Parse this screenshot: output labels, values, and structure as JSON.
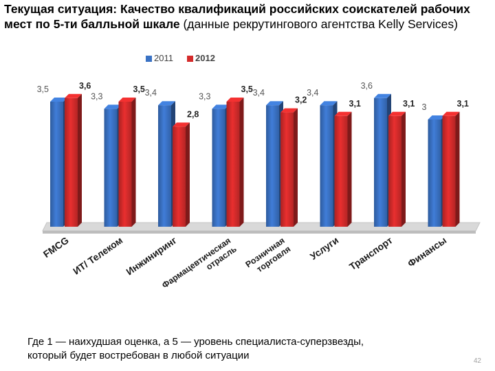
{
  "title": {
    "bold": "Текущая ситуация: Качество квалификаций российских  соискателей рабочих мест по 5-ти балльной шкале",
    "normal": " (данные рекрутингового агентства Kelly Services)"
  },
  "note": {
    "line1": "Где 1 — наихудшая оценка, а 5 — уровень специалиста-суперзвезды,",
    "line2": "который будет востребован в любой ситуации"
  },
  "page_number": "42",
  "colors": {
    "s2011": "#3a72c4",
    "s2012": "#d42b2b",
    "floor": "#d9d9d9"
  },
  "chart_data": {
    "type": "bar",
    "categories": [
      [
        "FMCG"
      ],
      [
        "ИТ/ Телеком"
      ],
      [
        "Инжиниринг"
      ],
      [
        "Фармацевтическая",
        "отрасль"
      ],
      [
        "Розничная",
        "торговля"
      ],
      [
        "Услуги"
      ],
      [
        "Транспорт"
      ],
      [
        "Финансы"
      ]
    ],
    "series": [
      {
        "name": "2011",
        "values": [
          3.5,
          3.3,
          3.4,
          3.3,
          3.4,
          3.4,
          3.6,
          3
        ],
        "labels": [
          "3,5",
          "3,3",
          "3,4",
          "3,3",
          "3,4",
          "3,4",
          "3,6",
          "3"
        ]
      },
      {
        "name": "2012",
        "values": [
          3.6,
          3.5,
          2.8,
          3.5,
          3.2,
          3.1,
          3.1,
          3.1
        ],
        "labels": [
          "3,6",
          "3,5",
          "2,8",
          "3,5",
          "3,2",
          "3,1",
          "3,1",
          "3,1"
        ]
      }
    ],
    "ylim": [
      0,
      4
    ],
    "legend_position": "top",
    "grid": false
  }
}
